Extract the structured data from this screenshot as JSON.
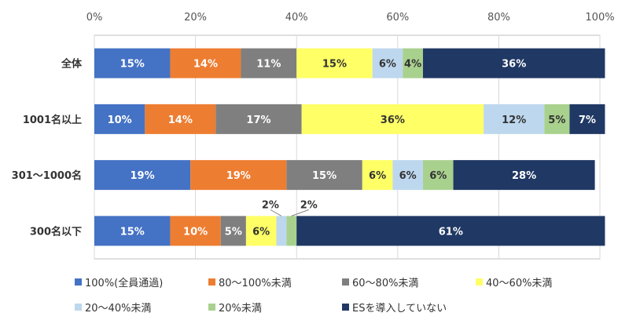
{
  "chart_data": {
    "type": "bar",
    "orientation": "horizontal",
    "stacked": true,
    "categories": [
      "全体",
      "1001名以上",
      "301～1000名",
      "300名以下"
    ],
    "series": [
      {
        "name": "100%(全員通過)",
        "color": "#4472C4",
        "values": [
          15,
          10,
          19,
          15
        ]
      },
      {
        "name": "80～100%未満",
        "color": "#ED7D31",
        "values": [
          14,
          14,
          19,
          10
        ]
      },
      {
        "name": "60～80%未満",
        "color": "#7F7F7F",
        "values": [
          11,
          17,
          15,
          5
        ]
      },
      {
        "name": "40～60%未満",
        "color": "#FFFF66",
        "values": [
          15,
          36,
          6,
          6
        ]
      },
      {
        "name": "20～40%未満",
        "color": "#BDD7EE",
        "values": [
          6,
          12,
          6,
          2
        ]
      },
      {
        "name": "20%未満",
        "color": "#A9D18E",
        "values": [
          4,
          5,
          6,
          2
        ]
      },
      {
        "name": "ESを導入していない",
        "color": "#203864",
        "values": [
          36,
          7,
          28,
          61
        ]
      }
    ],
    "data_labels": [
      [
        "15%",
        "14%",
        "11%",
        "15%",
        "6%",
        "4%",
        "36%"
      ],
      [
        "10%",
        "14%",
        "17%",
        "36%",
        "12%",
        "5%",
        "7%"
      ],
      [
        "19%",
        "19%",
        "15%",
        "6%",
        "6%",
        "6%",
        "28%"
      ],
      [
        "15%",
        "10%",
        "5%",
        "6%",
        "2%",
        "2%",
        "61%"
      ]
    ],
    "x_ticks": [
      "0%",
      "20%",
      "40%",
      "60%",
      "80%",
      "100%"
    ],
    "xlim": [
      0,
      100
    ],
    "grid": true,
    "legend_position": "bottom"
  }
}
